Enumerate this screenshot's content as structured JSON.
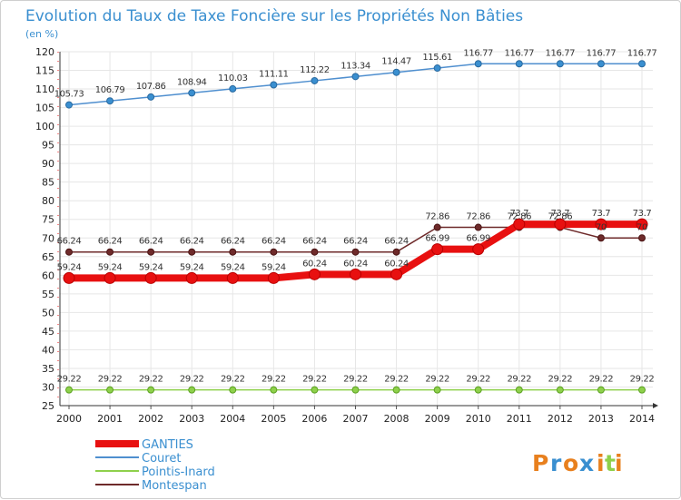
{
  "chart_data": {
    "type": "line",
    "title": "Evolution du Taux de Taxe Foncière sur les Propriétés Non Bâties",
    "unit_label": "(en %)",
    "xlabel": "",
    "ylabel": "",
    "ylim": [
      25,
      120
    ],
    "ytick_step": 5,
    "grid": true,
    "categories": [
      "2000",
      "2001",
      "2002",
      "2003",
      "2004",
      "2005",
      "2006",
      "2007",
      "2008",
      "2009",
      "2010",
      "2011",
      "2012",
      "2013",
      "2014"
    ],
    "series": [
      {
        "name": "GANTIES",
        "color": "#e81010",
        "values": [
          59.24,
          59.24,
          59.24,
          59.24,
          59.24,
          59.24,
          60.24,
          60.24,
          60.24,
          66.99,
          66.99,
          73.7,
          73.7,
          73.7,
          73.7
        ],
        "labels": [
          "59.24",
          "59.24",
          "59.24",
          "59.24",
          "59.24",
          "59.24",
          "60.24",
          "60.24",
          "60.24",
          "66.99",
          "66.99",
          "73.7",
          "73.7",
          "73.7",
          "73.7"
        ]
      },
      {
        "name": "Couret",
        "color": "#4f8fcf",
        "values": [
          105.73,
          106.79,
          107.86,
          108.94,
          110.03,
          111.11,
          112.22,
          113.34,
          114.47,
          115.61,
          116.77,
          116.77,
          116.77,
          116.77,
          116.77
        ],
        "labels": [
          "105.73",
          "106.79",
          "107.86",
          "108.94",
          "110.03",
          "111.11",
          "112.22",
          "113.34",
          "114.47",
          "115.61",
          "116.77",
          "116.77",
          "116.77",
          "116.77",
          "116.77"
        ]
      },
      {
        "name": "Pointis-Inard",
        "color": "#8ed04b",
        "values": [
          29.22,
          29.22,
          29.22,
          29.22,
          29.22,
          29.22,
          29.22,
          29.22,
          29.22,
          29.22,
          29.22,
          29.22,
          29.22,
          29.22,
          29.22
        ],
        "labels": [
          "29.22",
          "29.22",
          "29.22",
          "29.22",
          "29.22",
          "29.22",
          "29.22",
          "29.22",
          "29.22",
          "29.22",
          "29.22",
          "29.22",
          "29.22",
          "29.22",
          "29.22"
        ]
      },
      {
        "name": "Montespan",
        "color": "#6e2a2a",
        "values": [
          66.24,
          66.24,
          66.24,
          66.24,
          66.24,
          66.24,
          66.24,
          66.24,
          66.24,
          72.86,
          72.86,
          72.86,
          72.86,
          70.0,
          70.0
        ],
        "labels": [
          "66.24",
          "66.24",
          "66.24",
          "66.24",
          "66.24",
          "66.24",
          "66.24",
          "66.24",
          "66.24",
          "72.86",
          "72.86",
          "72.86",
          "72.86",
          "70",
          "70"
        ]
      }
    ],
    "legend_position": "bottom-left"
  },
  "logo": {
    "letters": [
      "P",
      "r",
      "o",
      "x",
      "i",
      "t",
      "i"
    ],
    "colors": [
      "#e8801e",
      "#3a8fd0",
      "#e8801e",
      "#3a8fd0",
      "#e8801e",
      "#8ed04b",
      "#e8801e"
    ]
  }
}
